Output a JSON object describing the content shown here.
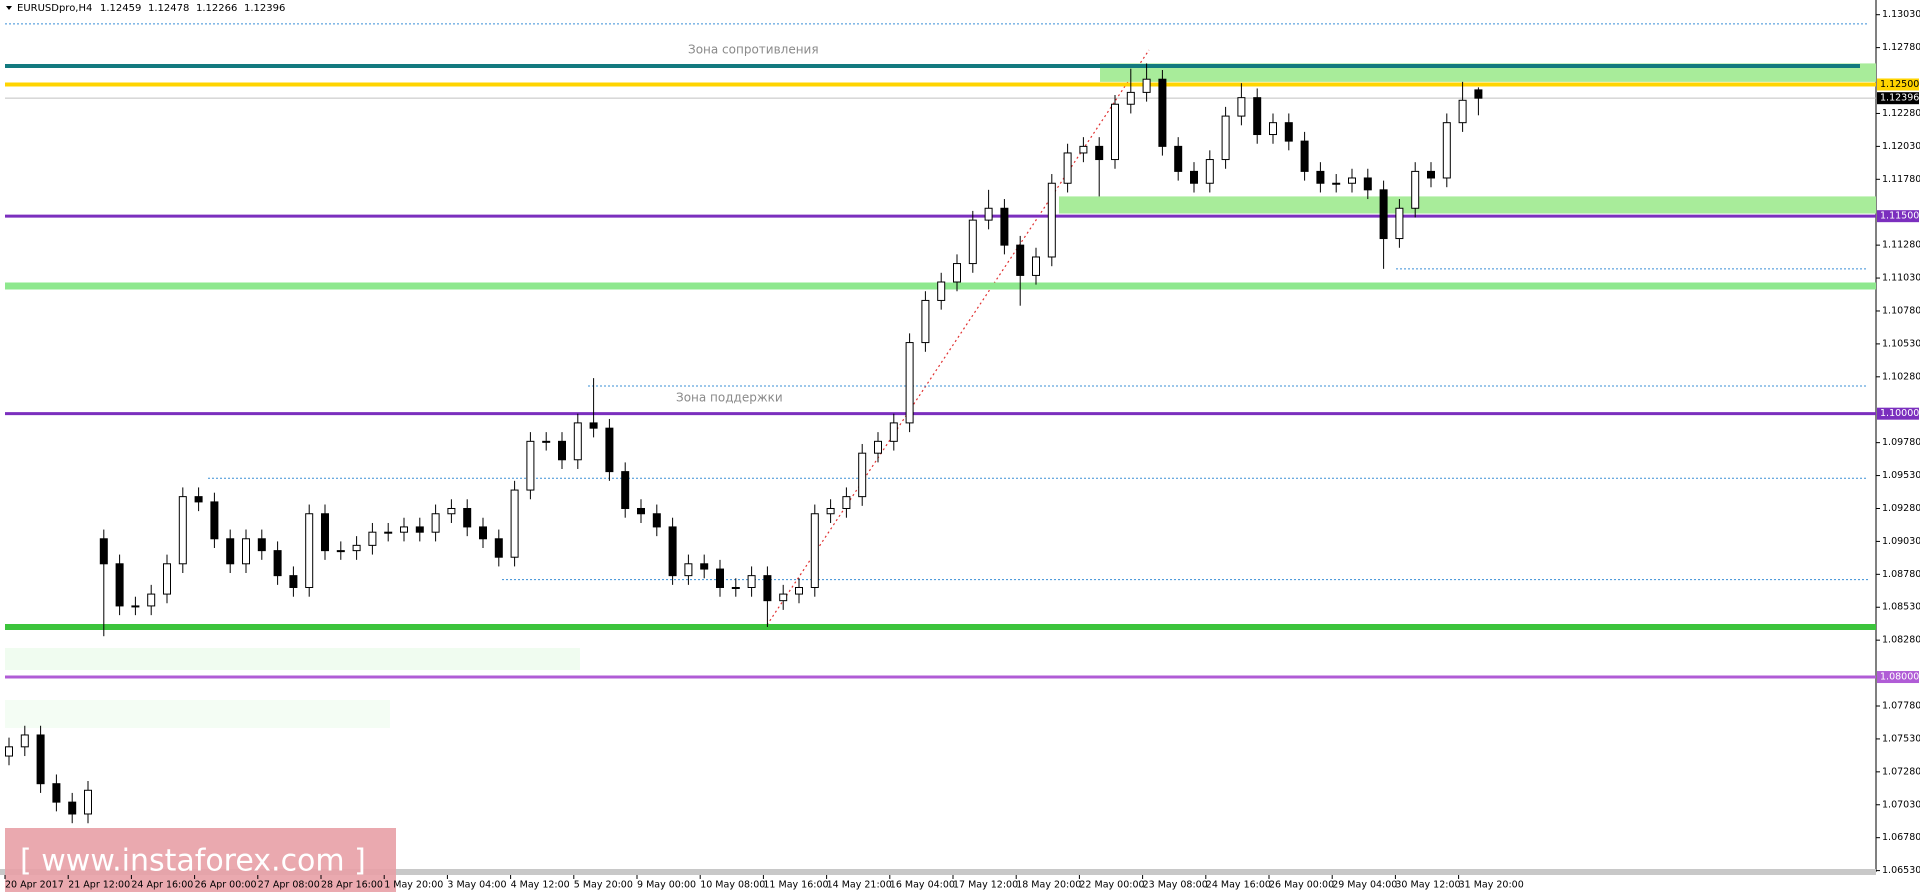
{
  "chart_data": {
    "type": "candlestick",
    "symbol": "EURUSDpro,H4",
    "resistance_text": "Зона сопротивления",
    "support_text": "Зона поддержки",
    "watermark": "[ www.instaforex.com ]",
    "x_labels": [
      "20 Apr 2017",
      "21 Apr 12:00",
      "24 Apr 16:00",
      "26 Apr 00:00",
      "27 Apr 08:00",
      "28 Apr 16:00",
      "1 May 20:00",
      "3 May 04:00",
      "4 May 12:00",
      "5 May 20:00",
      "9 May 00:00",
      "10 May 08:00",
      "11 May 16:00",
      "14 May 21:00",
      "16 May 04:00",
      "17 May 12:00",
      "18 May 20:00",
      "22 May 00:00",
      "23 May 08:00",
      "24 May 16:00",
      "26 May 00:00",
      "29 May 04:00",
      "30 May 12:00",
      "31 May 20:00"
    ],
    "open": [
      1.074,
      1.0747,
      1.0756,
      1.0719,
      1.0705,
      1.0696,
      1.0905,
      1.0886,
      1.0854,
      1.0854,
      1.0863,
      1.0886,
      1.0937,
      1.0933,
      1.0905,
      1.0886,
      1.0905,
      1.0896,
      1.0877,
      1.0868,
      1.0924,
      1.0896,
      1.0896,
      1.09,
      1.091,
      1.091,
      1.0914,
      1.091,
      1.0924,
      1.0928,
      1.0914,
      1.0905,
      1.0891,
      1.0942,
      1.0979,
      1.0979,
      1.0965,
      1.0993,
      1.0989,
      1.0956,
      1.0928,
      1.0924,
      1.0914,
      1.0877,
      1.0886,
      1.0882,
      1.0868,
      1.0868,
      1.0877,
      1.0858,
      1.0863,
      1.0868,
      1.0924,
      1.0928,
      1.0937,
      1.097,
      1.0979,
      1.0993,
      1.1054,
      1.1086,
      1.11,
      1.1114,
      1.1147,
      1.1156,
      1.1128,
      1.1105,
      1.1119,
      1.1175,
      1.1198,
      1.1203,
      1.1193,
      1.1235,
      1.1244,
      1.1254,
      1.1203,
      1.1184,
      1.1175,
      1.1193,
      1.1226,
      1.124,
      1.1212,
      1.1221,
      1.1207,
      1.1184,
      1.1175,
      1.1175,
      1.1179,
      1.117,
      1.1133,
      1.1156,
      1.1184,
      1.1179,
      1.1221,
      1.12459
    ],
    "high": [
      1.0754,
      1.0763,
      1.0763,
      1.0726,
      1.0712,
      1.0721,
      1.0912,
      1.0893,
      1.0861,
      1.087,
      1.0893,
      1.0944,
      1.0944,
      1.094,
      1.0912,
      1.0912,
      1.0912,
      1.0903,
      1.0884,
      1.0931,
      1.0931,
      1.0903,
      1.0907,
      1.0917,
      1.0917,
      1.0921,
      1.0921,
      1.0931,
      1.0935,
      1.0935,
      1.0921,
      1.0912,
      1.0949,
      1.0986,
      1.0986,
      1.0986,
      1.1,
      1.1027,
      1.0996,
      1.0963,
      1.0935,
      1.0931,
      1.0921,
      1.0893,
      1.0893,
      1.0889,
      1.0875,
      1.0884,
      1.0884,
      1.087,
      1.0875,
      1.0931,
      1.0935,
      1.0944,
      1.0977,
      1.0986,
      1.1,
      1.1061,
      1.1093,
      1.1107,
      1.1121,
      1.1154,
      1.117,
      1.1163,
      1.1135,
      1.1126,
      1.1182,
      1.1205,
      1.121,
      1.121,
      1.1242,
      1.1262,
      1.1266,
      1.1261,
      1.121,
      1.1191,
      1.12,
      1.1233,
      1.1251,
      1.1247,
      1.1228,
      1.1228,
      1.1214,
      1.1191,
      1.1182,
      1.1186,
      1.1186,
      1.1177,
      1.1163,
      1.1191,
      1.1191,
      1.1228,
      1.1252,
      1.12478
    ],
    "low": [
      1.0733,
      1.074,
      1.0712,
      1.0698,
      1.0689,
      1.0689,
      1.0831,
      1.0847,
      1.0847,
      1.0847,
      1.0856,
      1.0879,
      1.0926,
      1.0898,
      1.0879,
      1.0879,
      1.0889,
      1.087,
      1.0861,
      1.0861,
      1.0889,
      1.0889,
      1.0889,
      1.0893,
      1.0903,
      1.0903,
      1.0903,
      1.0903,
      1.0917,
      1.0907,
      1.0898,
      1.0884,
      1.0884,
      1.0935,
      1.0972,
      1.0958,
      1.0958,
      1.0982,
      1.0949,
      1.0921,
      1.0917,
      1.0907,
      1.087,
      1.087,
      1.0875,
      1.0861,
      1.0861,
      1.0861,
      1.0838,
      1.0851,
      1.0856,
      1.0861,
      1.0917,
      1.0921,
      1.093,
      1.0963,
      1.0972,
      1.0986,
      1.1047,
      1.1079,
      1.1093,
      1.1107,
      1.114,
      1.1121,
      1.1082,
      1.1098,
      1.1112,
      1.1168,
      1.1191,
      1.1165,
      1.1186,
      1.1228,
      1.1237,
      1.1196,
      1.1177,
      1.1168,
      1.1168,
      1.1186,
      1.1219,
      1.1205,
      1.1205,
      1.12,
      1.1177,
      1.1168,
      1.1168,
      1.1168,
      1.1163,
      1.111,
      1.1126,
      1.1149,
      1.1172,
      1.1172,
      1.1214,
      1.12266
    ],
    "close": [
      1.0747,
      1.0756,
      1.0719,
      1.0705,
      1.0696,
      1.0714,
      1.0886,
      1.0854,
      1.0854,
      1.0863,
      1.0886,
      1.0937,
      1.0933,
      1.0905,
      1.0886,
      1.0905,
      1.0896,
      1.0877,
      1.0868,
      1.0924,
      1.0896,
      1.0896,
      1.09,
      1.091,
      1.091,
      1.0914,
      1.091,
      1.0924,
      1.0928,
      1.0914,
      1.0905,
      1.0891,
      1.0942,
      1.0979,
      1.0979,
      1.0965,
      1.0993,
      1.0989,
      1.0956,
      1.0928,
      1.0924,
      1.0914,
      1.0877,
      1.0886,
      1.0882,
      1.0868,
      1.0868,
      1.0877,
      1.0858,
      1.0863,
      1.0868,
      1.0924,
      1.0928,
      1.0937,
      1.097,
      1.0979,
      1.0993,
      1.1054,
      1.1086,
      1.11,
      1.1114,
      1.1147,
      1.1156,
      1.1128,
      1.1105,
      1.1119,
      1.1175,
      1.1198,
      1.1203,
      1.1193,
      1.1235,
      1.1244,
      1.1254,
      1.1203,
      1.1184,
      1.1175,
      1.1193,
      1.1226,
      1.124,
      1.1212,
      1.1221,
      1.1207,
      1.1184,
      1.1175,
      1.1175,
      1.1179,
      1.117,
      1.1133,
      1.1156,
      1.1184,
      1.1179,
      1.1221,
      1.1238,
      1.12396
    ],
    "ylim": [
      1.0653,
      1.1303
    ],
    "yticks": [
      {
        "value": 1.1303,
        "label": "1.13030"
      },
      {
        "value": 1.1278,
        "label": "1.12780"
      },
      {
        "value": 1.1228,
        "label": "1.12280"
      },
      {
        "value": 1.1203,
        "label": "1.12030"
      },
      {
        "value": 1.1178,
        "label": "1.11780"
      },
      {
        "value": 1.1128,
        "label": "1.11280"
      },
      {
        "value": 1.1103,
        "label": "1.11030"
      },
      {
        "value": 1.1078,
        "label": "1.10780"
      },
      {
        "value": 1.1053,
        "label": "1.10530"
      },
      {
        "value": 1.1028,
        "label": "1.10280"
      },
      {
        "value": 1.0978,
        "label": "1.09780"
      },
      {
        "value": 1.0953,
        "label": "1.09530"
      },
      {
        "value": 1.0928,
        "label": "1.09280"
      },
      {
        "value": 1.0903,
        "label": "1.09030"
      },
      {
        "value": 1.0878,
        "label": "1.08780"
      },
      {
        "value": 1.0853,
        "label": "1.08530"
      },
      {
        "value": 1.0828,
        "label": "1.08280"
      },
      {
        "value": 1.0778,
        "label": "1.07780"
      },
      {
        "value": 1.0753,
        "label": "1.07530"
      },
      {
        "value": 1.0728,
        "label": "1.07280"
      },
      {
        "value": 1.0703,
        "label": "1.07030"
      },
      {
        "value": 1.0678,
        "label": "1.06780"
      },
      {
        "value": 1.0653,
        "label": "1.06530"
      }
    ],
    "levels": [
      {
        "value": 1.125,
        "label": "1.12500",
        "color": "#ffd400",
        "text_color": "#000000"
      },
      {
        "value": 1.12396,
        "label": "1.12396",
        "color": "#000000",
        "text_color": "#ffffff"
      },
      {
        "value": 1.115,
        "label": "1.11500",
        "color": "#7b2fbe",
        "text_color": "#ffffff"
      },
      {
        "value": 1.1,
        "label": "1.10000",
        "color": "#7b2fbe",
        "text_color": "#ffffff"
      },
      {
        "value": 1.08,
        "label": "1.08000",
        "color": "#b05cd6",
        "text_color": "#ffffff"
      }
    ],
    "lines": [
      {
        "value": 1.1264,
        "color": "#137a7f"
      },
      {
        "value": 1.1097,
        "color": "#8ee88e"
      },
      {
        "value": 1.0838,
        "color": "#3cc43c"
      }
    ],
    "dotted_lines": [
      {
        "value": 1.1296,
        "color": "#3a8fd6"
      },
      {
        "value": 1.1021,
        "color": "#3a8fd6"
      },
      {
        "value": 1.0951,
        "color": "#3a8fd6"
      },
      {
        "value": 1.0874,
        "color": "#3a8fd6"
      },
      {
        "value": 1.111,
        "color": "#3a8fd6"
      }
    ],
    "zones": [
      {
        "from": 1.1252,
        "to": 1.1266,
        "color": "#a8ec9a"
      },
      {
        "from": 1.1152,
        "to": 1.1165,
        "color": "#a8ec9a"
      }
    ],
    "grid": false
  }
}
